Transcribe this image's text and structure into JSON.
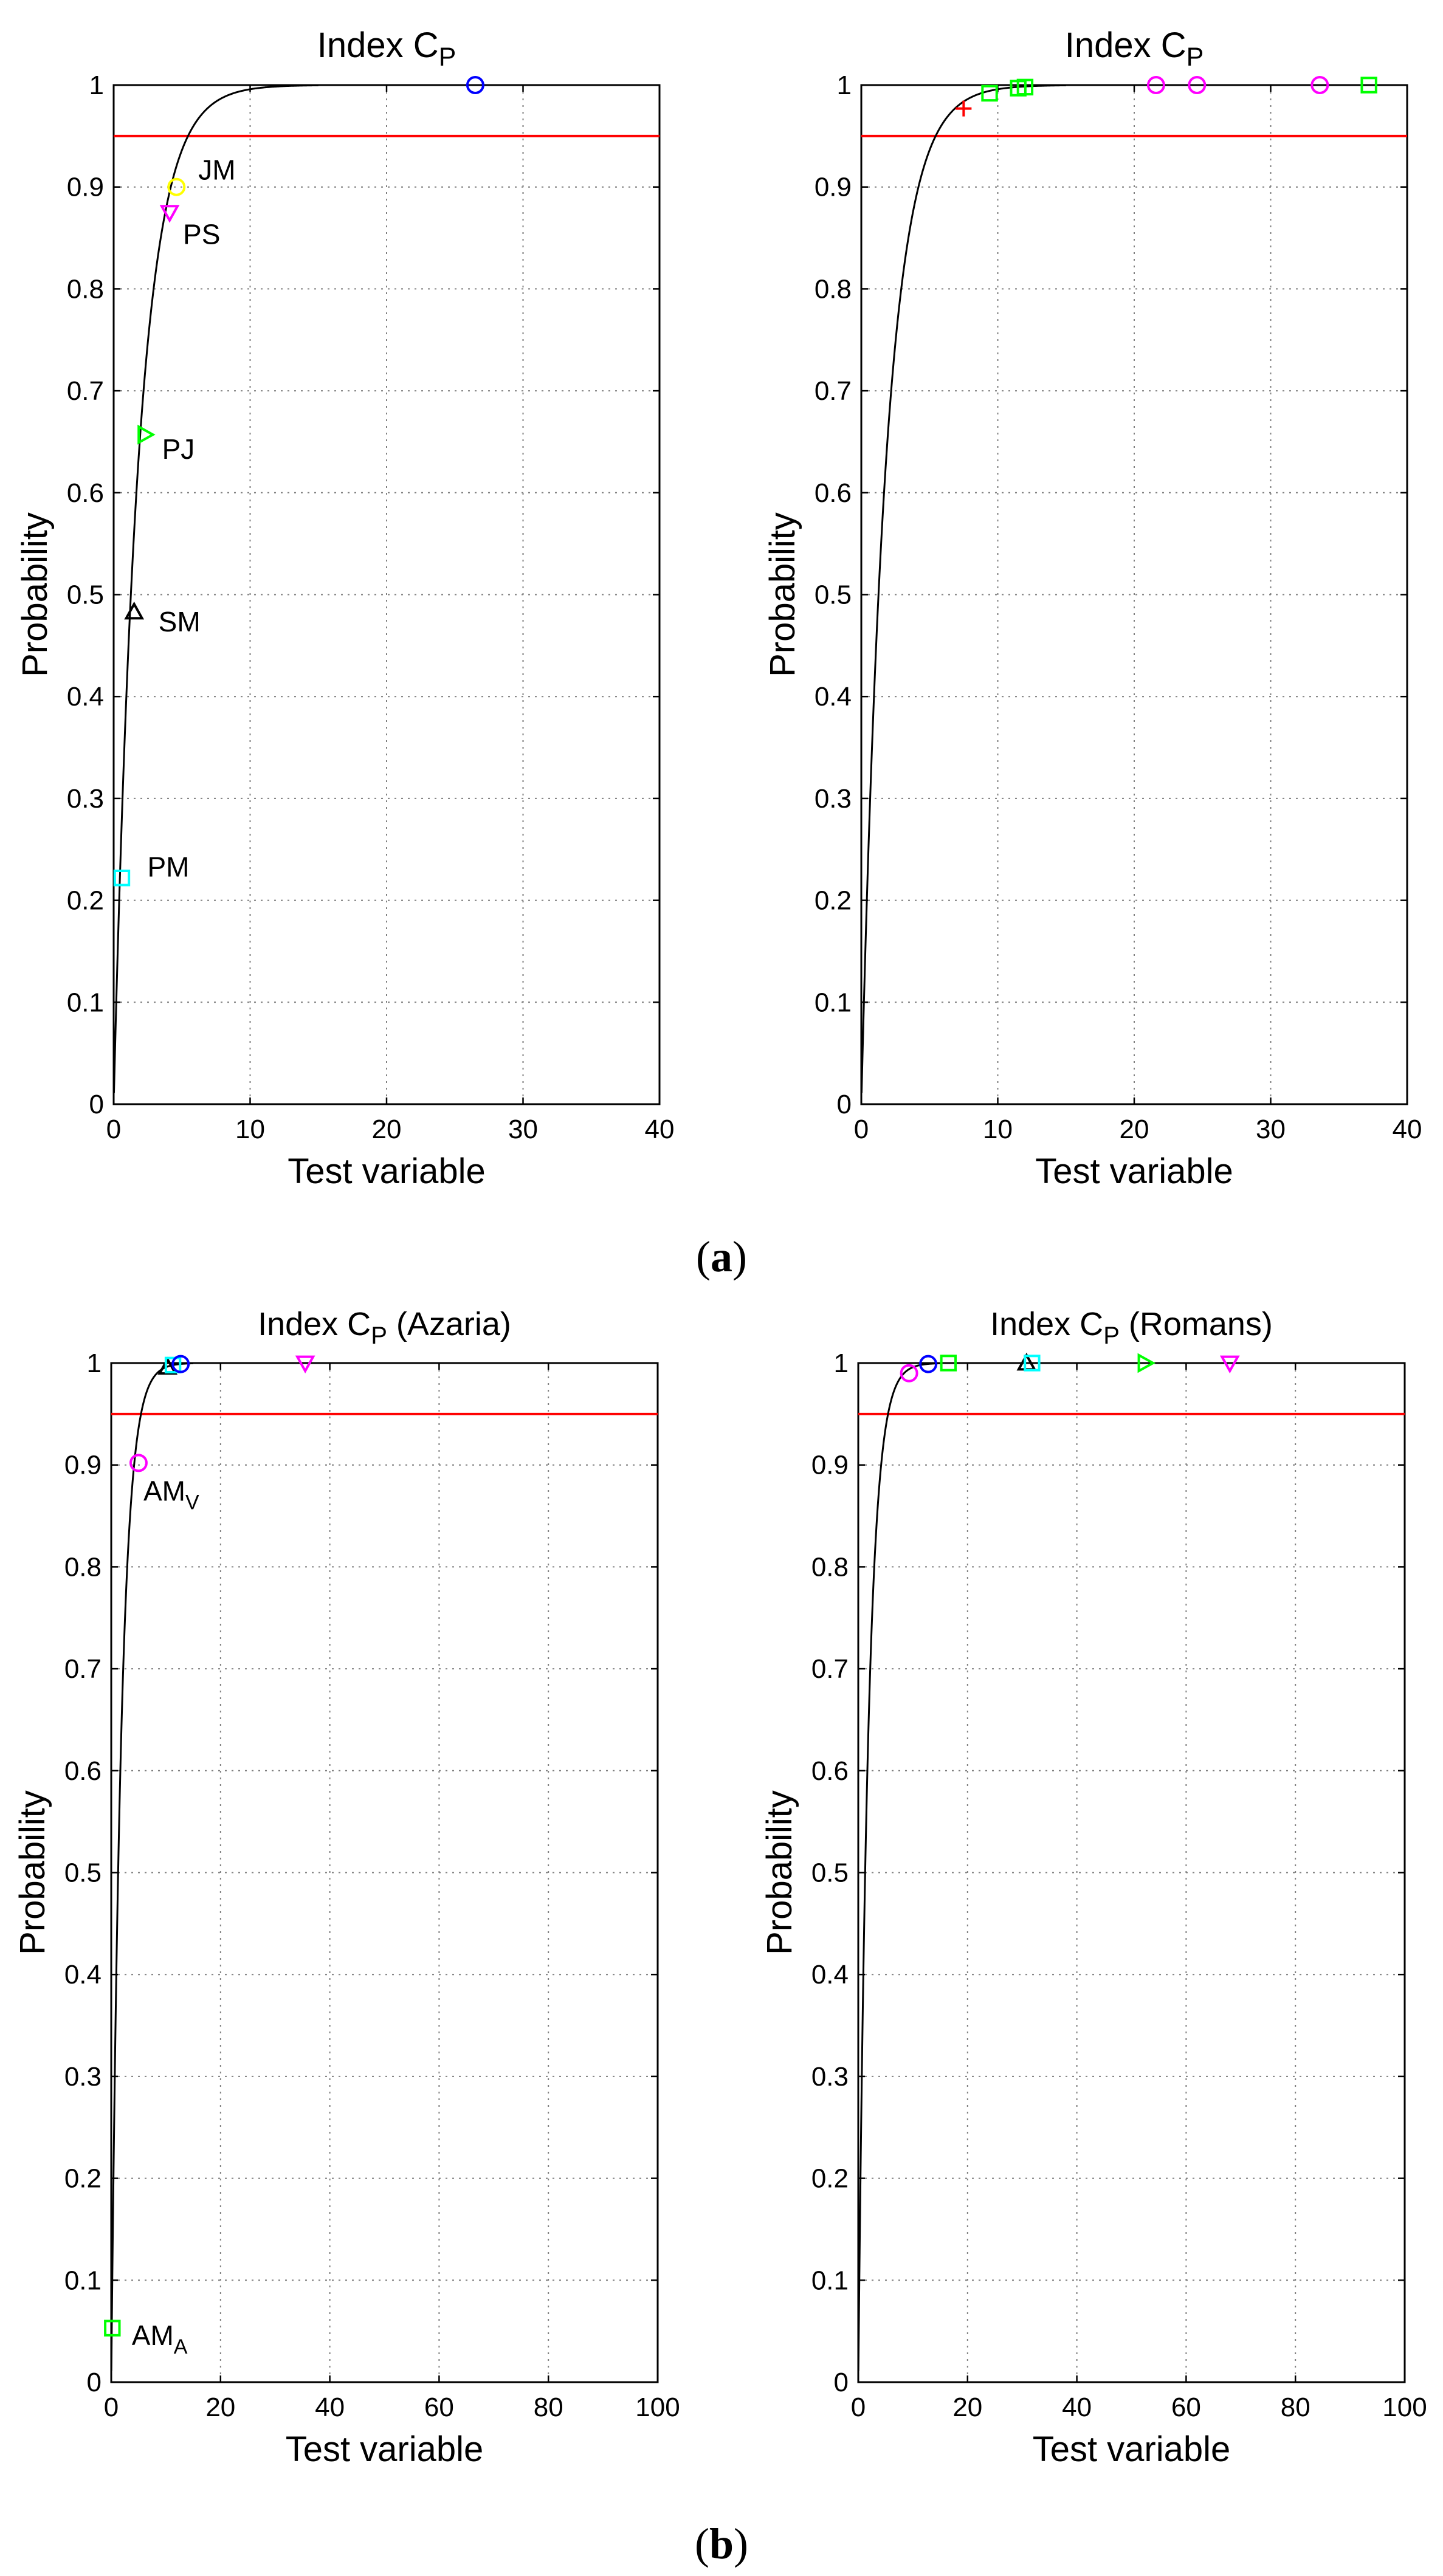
{
  "figure_labels": {
    "a": "(a)",
    "b": "(b)"
  },
  "panel_label_parts": {
    "a": {
      "open": "(",
      "letter": "a",
      "close": ")"
    },
    "b": {
      "open": "(",
      "letter": "b",
      "close": ")"
    }
  },
  "chart_data": [
    {
      "id": "a-left",
      "type": "scatter",
      "title": {
        "main": "Index C",
        "sub": "P",
        "suffix": ""
      },
      "xlabel": "Test variable",
      "ylabel": "Probability",
      "xlim": [
        0,
        40
      ],
      "ylim": [
        0,
        1
      ],
      "xticks": [
        0,
        10,
        20,
        30,
        40
      ],
      "yticks": [
        0,
        0.1,
        0.2,
        0.3,
        0.4,
        0.5,
        0.6,
        0.7,
        0.8,
        0.9,
        1
      ],
      "grid": true,
      "threshold": {
        "y": 0.95,
        "color": "#ff0000"
      },
      "cdf_curve": {
        "color": "#000000",
        "x_end": 15
      },
      "points": [
        {
          "x": 26.5,
          "y": 1.0,
          "marker": "circle",
          "color": "#0000ff",
          "label": ""
        },
        {
          "x": 4.6,
          "y": 0.9,
          "marker": "circle",
          "color": "#ffff00",
          "label": "JM",
          "sub": ""
        },
        {
          "x": 4.1,
          "y": 0.875,
          "marker": "triangle-down",
          "color": "#ff00ff",
          "label": "PS",
          "sub": ""
        },
        {
          "x": 2.3,
          "y": 0.657,
          "marker": "triangle-right",
          "color": "#00ff00",
          "label": "PJ",
          "sub": ""
        },
        {
          "x": 1.5,
          "y": 0.483,
          "marker": "triangle-up",
          "color": "#000000",
          "label": "SM",
          "sub": ""
        },
        {
          "x": 0.6,
          "y": 0.222,
          "marker": "square",
          "color": "#00ffff",
          "label": "PM",
          "sub": ""
        }
      ]
    },
    {
      "id": "a-right",
      "type": "scatter",
      "title": {
        "main": "Index C",
        "sub": "P",
        "suffix": ""
      },
      "xlabel": "Test variable",
      "ylabel": "Probability",
      "xlim": [
        0,
        40
      ],
      "ylim": [
        0,
        1
      ],
      "xticks": [
        0,
        10,
        20,
        30,
        40
      ],
      "yticks": [
        0,
        0.1,
        0.2,
        0.3,
        0.4,
        0.5,
        0.6,
        0.7,
        0.8,
        0.9,
        1
      ],
      "grid": true,
      "threshold": {
        "y": 0.95,
        "color": "#ff0000"
      },
      "cdf_curve": {
        "color": "#000000",
        "x_end": 15
      },
      "points": [
        {
          "x": 7.5,
          "y": 0.977,
          "marker": "plus",
          "color": "#ff0000",
          "label": ""
        },
        {
          "x": 9.4,
          "y": 0.992,
          "marker": "square",
          "color": "#00ff00",
          "label": ""
        },
        {
          "x": 11.5,
          "y": 0.997,
          "marker": "square",
          "color": "#00ff00",
          "label": ""
        },
        {
          "x": 12.0,
          "y": 0.998,
          "marker": "square",
          "color": "#00ff00",
          "label": ""
        },
        {
          "x": 21.6,
          "y": 1.0,
          "marker": "circle",
          "color": "#ff00ff",
          "label": ""
        },
        {
          "x": 24.6,
          "y": 1.0,
          "marker": "circle",
          "color": "#ff00ff",
          "label": ""
        },
        {
          "x": 33.6,
          "y": 1.0,
          "marker": "circle",
          "color": "#ff00ff",
          "label": ""
        },
        {
          "x": 37.2,
          "y": 1.0,
          "marker": "square",
          "color": "#00ff00",
          "label": ""
        }
      ]
    },
    {
      "id": "b-left",
      "type": "scatter",
      "title": {
        "main": "Index C",
        "sub": "P",
        "suffix": " (Azaria)"
      },
      "xlabel": "Test variable",
      "ylabel": "Probability",
      "xlim": [
        0,
        100
      ],
      "ylim": [
        0,
        1
      ],
      "xticks": [
        0,
        20,
        40,
        60,
        80,
        100
      ],
      "yticks": [
        0,
        0.1,
        0.2,
        0.3,
        0.4,
        0.5,
        0.6,
        0.7,
        0.8,
        0.9,
        1
      ],
      "grid": true,
      "threshold": {
        "y": 0.95,
        "color": "#ff0000"
      },
      "cdf_curve": {
        "color": "#000000",
        "x_end": 15
      },
      "points": [
        {
          "x": 10.3,
          "y": 0.996,
          "marker": "triangle-up",
          "color": "#000000",
          "label": ""
        },
        {
          "x": 11.3,
          "y": 0.998,
          "marker": "square",
          "color": "#00ffff",
          "label": ""
        },
        {
          "x": 12.7,
          "y": 0.999,
          "marker": "circle",
          "color": "#0000ff",
          "label": ""
        },
        {
          "x": 35.5,
          "y": 1.0,
          "marker": "triangle-down",
          "color": "#ff00ff",
          "label": ""
        },
        {
          "x": 5.0,
          "y": 0.902,
          "marker": "circle",
          "color": "#ff00ff",
          "label": "AM",
          "sub": "V"
        },
        {
          "x": 0.2,
          "y": 0.053,
          "marker": "square",
          "color": "#00ff00",
          "label": "AM",
          "sub": "A"
        }
      ]
    },
    {
      "id": "b-right",
      "type": "scatter",
      "title": {
        "main": "Index C",
        "sub": "P",
        "suffix": " (Romans)"
      },
      "xlabel": "Test variable",
      "ylabel": "Probability",
      "xlim": [
        0,
        100
      ],
      "ylim": [
        0,
        1
      ],
      "xticks": [
        0,
        20,
        40,
        60,
        80,
        100
      ],
      "yticks": [
        0,
        0.1,
        0.2,
        0.3,
        0.4,
        0.5,
        0.6,
        0.7,
        0.8,
        0.9,
        1
      ],
      "grid": true,
      "threshold": {
        "y": 0.95,
        "color": "#ff0000"
      },
      "cdf_curve": {
        "color": "#000000",
        "x_end": 15
      },
      "points": [
        {
          "x": 9.3,
          "y": 0.99,
          "marker": "circle",
          "color": "#ff00ff",
          "label": ""
        },
        {
          "x": 12.8,
          "y": 0.999,
          "marker": "circle",
          "color": "#0000ff",
          "label": ""
        },
        {
          "x": 16.5,
          "y": 1.0,
          "marker": "square",
          "color": "#00ff00",
          "label": ""
        },
        {
          "x": 30.8,
          "y": 1.0,
          "marker": "triangle-up",
          "color": "#000000",
          "label": ""
        },
        {
          "x": 31.8,
          "y": 1.0,
          "marker": "square",
          "color": "#00ffff",
          "label": ""
        },
        {
          "x": 52.5,
          "y": 1.0,
          "marker": "triangle-right",
          "color": "#00ff00",
          "label": ""
        },
        {
          "x": 68.0,
          "y": 1.0,
          "marker": "triangle-down",
          "color": "#ff00ff",
          "label": ""
        }
      ]
    }
  ]
}
